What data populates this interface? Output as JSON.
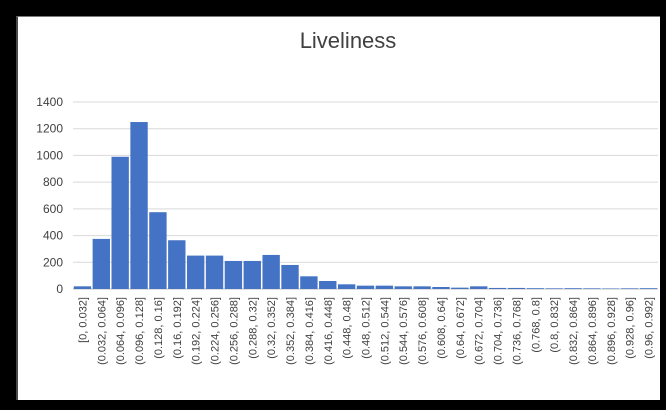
{
  "chart_data": {
    "type": "bar",
    "title": "Liveliness",
    "xlabel": "",
    "ylabel": "",
    "ylim": [
      0,
      1400
    ],
    "yticks": [
      0,
      200,
      400,
      600,
      800,
      1000,
      1200,
      1400
    ],
    "yticks_labels": [
      "0",
      "200",
      "400",
      "600",
      "800",
      "1000",
      "1200",
      "1400"
    ],
    "grid": true,
    "legend": "none",
    "bar_color": "#4472c4",
    "categories": [
      "[0, 0.032]",
      "(0.032, 0.064]",
      "(0.064, 0.096]",
      "(0.096, 0.128]",
      "(0.128, 0.16]",
      "(0.16, 0.192]",
      "(0.192, 0.224]",
      "(0.224, 0.256]",
      "(0.256, 0.288]",
      "(0.288, 0.32]",
      "(0.32, 0.352]",
      "(0.352, 0.384]",
      "(0.384, 0.416]",
      "(0.416, 0.448]",
      "(0.448, 0.48]",
      "(0.48, 0.512]",
      "(0.512, 0.544]",
      "(0.544, 0.576]",
      "(0.576, 0.608]",
      "(0.608, 0.64]",
      "(0.64, 0.672]",
      "(0.672, 0.704]",
      "(0.704, 0.736]",
      "(0.736, 0.768]",
      "(0.768, 0.8]",
      "(0.8, 0.832]",
      "(0.832, 0.864]",
      "(0.864, 0.896]",
      "(0.896, 0.928]",
      "(0.928, 0.96]",
      "(0.96, 0.992]"
    ],
    "values": [
      20,
      375,
      990,
      1250,
      575,
      365,
      250,
      250,
      210,
      210,
      255,
      180,
      95,
      60,
      35,
      25,
      25,
      20,
      20,
      15,
      10,
      20,
      8,
      8,
      6,
      5,
      6,
      5,
      4,
      5,
      6
    ]
  }
}
